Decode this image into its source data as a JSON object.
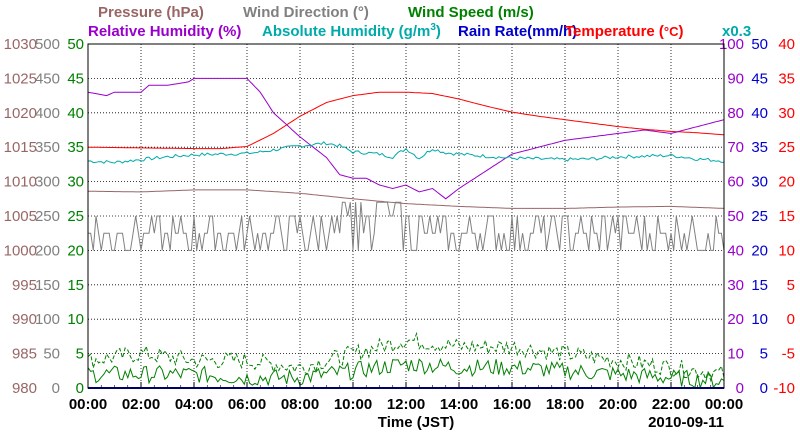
{
  "chart_data": {
    "type": "line",
    "date": "2010-09-11",
    "xlabel": "Time (JST)",
    "x_ticks": [
      "00:00",
      "02:00",
      "04:00",
      "06:00",
      "08:00",
      "10:00",
      "12:00",
      "14:00",
      "16:00",
      "18:00",
      "20:00",
      "22:00",
      "00:00"
    ],
    "x_range_hours": [
      0,
      24
    ],
    "legend": {
      "pressure": "Pressure (hPa)",
      "wind_direction": "Wind Direction (°)",
      "wind_speed": "Wind Speed (m/s)",
      "relative_humidity": "Relative Humidity (%)",
      "absolute_humidity_prefix": "Absolute Humidity (g/m",
      "absolute_humidity_sup": "3",
      "absolute_humidity_suffix": ")",
      "rain_rate": "Rain Rate(mm/h)",
      "temperature_prefix": "Temperature (",
      "temperature_unit": "°C",
      "temperature_suffix": ")",
      "scale_note": "x0.3"
    },
    "colors": {
      "pressure": "#996666",
      "wind_direction": "#808080",
      "wind_speed": "#008000",
      "relative_humidity": "#9900cc",
      "absolute_humidity": "#00aaaa",
      "rain_rate": "#0000cc",
      "temperature": "#ff0000",
      "grid": "#000000"
    },
    "axes": {
      "pressure": {
        "range": [
          980,
          1030
        ],
        "ticks": [
          "1030",
          "1025",
          "1020",
          "1015",
          "1010",
          "1005",
          "1000",
          "995",
          "990",
          "985",
          "980"
        ]
      },
      "wind_direction": {
        "range": [
          0,
          500
        ],
        "ticks": [
          "500",
          "450",
          "400",
          "350",
          "300",
          "250",
          "200",
          "150",
          "100",
          "50",
          "0"
        ]
      },
      "wind_speed": {
        "range": [
          0,
          50
        ],
        "ticks": [
          "50",
          "45",
          "40",
          "35",
          "30",
          "25",
          "20",
          "15",
          "10",
          "5",
          "0"
        ]
      },
      "relative_humidity": {
        "range": [
          0,
          100
        ],
        "ticks": [
          "100",
          "90",
          "80",
          "70",
          "60",
          "50",
          "40",
          "30",
          "20",
          "10",
          "0"
        ]
      },
      "rain_rate": {
        "range": [
          0,
          50
        ],
        "ticks": [
          "50",
          "45",
          "40",
          "35",
          "30",
          "25",
          "20",
          "15",
          "10",
          "5",
          "0"
        ]
      },
      "temperature": {
        "range": [
          -10,
          40
        ],
        "ticks": [
          "40",
          "35",
          "30",
          "25",
          "20",
          "15",
          "10",
          "5",
          "0",
          "-5",
          "-10"
        ]
      }
    },
    "series": [
      {
        "name": "Temperature",
        "axis": "temperature",
        "style": "solid",
        "x": [
          0,
          2,
          4,
          5,
          6,
          7,
          8,
          9,
          10,
          11,
          12,
          13,
          14,
          15,
          16,
          17,
          18,
          19,
          20,
          21,
          22,
          23,
          24
        ],
        "values": [
          25.0,
          24.9,
          24.8,
          24.8,
          25.1,
          27.0,
          29.5,
          31.5,
          32.5,
          33.0,
          33.0,
          32.8,
          32.0,
          31.0,
          30.1,
          29.5,
          29.0,
          28.5,
          28.0,
          27.6,
          27.3,
          27.1,
          26.8
        ]
      },
      {
        "name": "Relative Humidity",
        "axis": "relative_humidity",
        "style": "solid",
        "x": [
          0,
          0.7,
          1,
          2,
          2.3,
          3,
          3.8,
          4,
          5,
          6,
          6.5,
          7,
          8,
          9,
          9.5,
          10,
          10.5,
          11,
          11.5,
          12,
          12.5,
          13,
          13.5,
          14,
          15,
          16,
          17,
          18,
          19,
          20,
          21,
          22,
          23,
          24
        ],
        "values": [
          86,
          85,
          86,
          86,
          88,
          88,
          89,
          90,
          90,
          90,
          86,
          80,
          73,
          67,
          62,
          61,
          61,
          59,
          58,
          59,
          57,
          58,
          55,
          58,
          63,
          68,
          70,
          72,
          73,
          74,
          75,
          74,
          76,
          78
        ]
      },
      {
        "name": "Absolute Humidity",
        "axis": "pressure",
        "style": "solid",
        "x": [
          0,
          1,
          2,
          3,
          4,
          5,
          6,
          6.5,
          7,
          8,
          9,
          9.5,
          10,
          10.5,
          11,
          11.5,
          12,
          12.5,
          13,
          13.5,
          14,
          15,
          16,
          17,
          18,
          19,
          20,
          21,
          22,
          23,
          24
        ],
        "values": [
          1013.0,
          1012.8,
          1013.2,
          1013.6,
          1013.9,
          1014.0,
          1014.1,
          1014.3,
          1014.6,
          1015.2,
          1015.6,
          1015.2,
          1014.3,
          1014.2,
          1014.0,
          1013.6,
          1014.8,
          1013.4,
          1014.8,
          1014.2,
          1014.0,
          1013.7,
          1013.4,
          1013.3,
          1013.2,
          1013.3,
          1013.6,
          1013.7,
          1013.8,
          1013.3,
          1013.0
        ]
      },
      {
        "name": "Pressure",
        "axis": "pressure",
        "style": "solid",
        "x": [
          0,
          2,
          4,
          6,
          8,
          10,
          12,
          14,
          16,
          18,
          20,
          22,
          24
        ],
        "values": [
          1008.6,
          1008.5,
          1008.8,
          1008.8,
          1008.3,
          1007.5,
          1006.8,
          1006.4,
          1006.1,
          1006.1,
          1006.3,
          1006.4,
          1006.1
        ]
      },
      {
        "name": "Wind Speed (max)",
        "axis": "wind_speed",
        "style": "dashed",
        "x": [
          0,
          2,
          4,
          6,
          8,
          10,
          12,
          14,
          16,
          18,
          20,
          22,
          24
        ],
        "values": [
          4,
          5,
          4,
          4,
          3,
          5,
          7,
          6,
          6,
          5,
          4,
          3,
          2
        ]
      },
      {
        "name": "Wind Speed",
        "axis": "wind_speed",
        "style": "solid",
        "x": [
          0,
          2,
          4,
          6,
          8,
          10,
          12,
          14,
          16,
          18,
          20,
          22,
          24
        ],
        "values": [
          2,
          2,
          2,
          1.5,
          1.5,
          2.5,
          3.5,
          3,
          3,
          2.5,
          2,
          1.5,
          1
        ]
      },
      {
        "name": "Wind Direction",
        "axis": "wind_direction",
        "style": "solid",
        "base_values": [
          200,
          225,
          250
        ],
        "x_range": [
          0,
          24
        ]
      },
      {
        "name": "Rain Rate",
        "axis": "rain_rate",
        "style": "solid",
        "x": [
          0,
          24
        ],
        "values": [
          0,
          0
        ]
      }
    ]
  }
}
